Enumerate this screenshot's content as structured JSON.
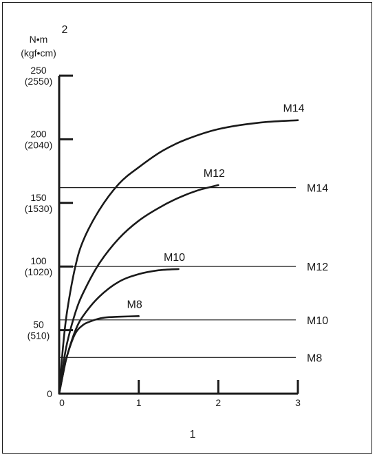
{
  "chart_data": {
    "type": "line",
    "xlabel": "1",
    "ylabel": "2",
    "y_unit_primary": "N•m",
    "y_unit_secondary": "(kgf•cm)",
    "xlim": [
      0,
      3
    ],
    "ylim": [
      0,
      250
    ],
    "x_ticks": [
      {
        "value": 0,
        "label": "0"
      },
      {
        "value": 1,
        "label": "1"
      },
      {
        "value": 2,
        "label": "2"
      },
      {
        "value": 3,
        "label": "3"
      }
    ],
    "y_ticks": [
      {
        "value": 0,
        "label": "0",
        "label2": ""
      },
      {
        "value": 50,
        "label": "50",
        "label2": "(510)"
      },
      {
        "value": 100,
        "label": "100",
        "label2": "(1020)"
      },
      {
        "value": 150,
        "label": "150",
        "label2": "(1530)"
      },
      {
        "value": 200,
        "label": "200",
        "label2": "(2040)"
      },
      {
        "value": 250,
        "label": "250",
        "label2": "(2550)"
      }
    ],
    "series": [
      {
        "name": "M14",
        "x": [
          0,
          0.05,
          0.1,
          0.2,
          0.3,
          0.5,
          0.75,
          1.0,
          1.3,
          1.6,
          2.0,
          2.5,
          3.0
        ],
        "y": [
          0,
          38,
          65,
          99,
          120,
          144,
          165,
          178,
          191,
          200,
          208,
          213,
          215
        ]
      },
      {
        "name": "M12",
        "x": [
          0,
          0.05,
          0.1,
          0.2,
          0.3,
          0.5,
          0.75,
          1.0,
          1.25,
          1.5,
          1.75,
          2.0
        ],
        "y": [
          0,
          22,
          40,
          63,
          79,
          102,
          122,
          136,
          146,
          154,
          160,
          164
        ]
      },
      {
        "name": "M10",
        "x": [
          0,
          0.05,
          0.1,
          0.2,
          0.3,
          0.5,
          0.75,
          1.0,
          1.25,
          1.5
        ],
        "y": [
          0,
          16,
          30,
          49,
          61,
          76,
          88,
          94,
          97,
          98
        ]
      },
      {
        "name": "M8",
        "x": [
          0,
          0.05,
          0.1,
          0.2,
          0.3,
          0.4,
          0.5,
          0.6,
          0.75,
          1.0
        ],
        "y": [
          0,
          16,
          30,
          47,
          54,
          57,
          59,
          60,
          60.5,
          61
        ]
      }
    ],
    "reference_lines": [
      {
        "label": "M14",
        "y": 162
      },
      {
        "label": "M12",
        "y": 100
      },
      {
        "label": "M10",
        "y": 58
      },
      {
        "label": "M8",
        "y": 28.5
      }
    ]
  }
}
